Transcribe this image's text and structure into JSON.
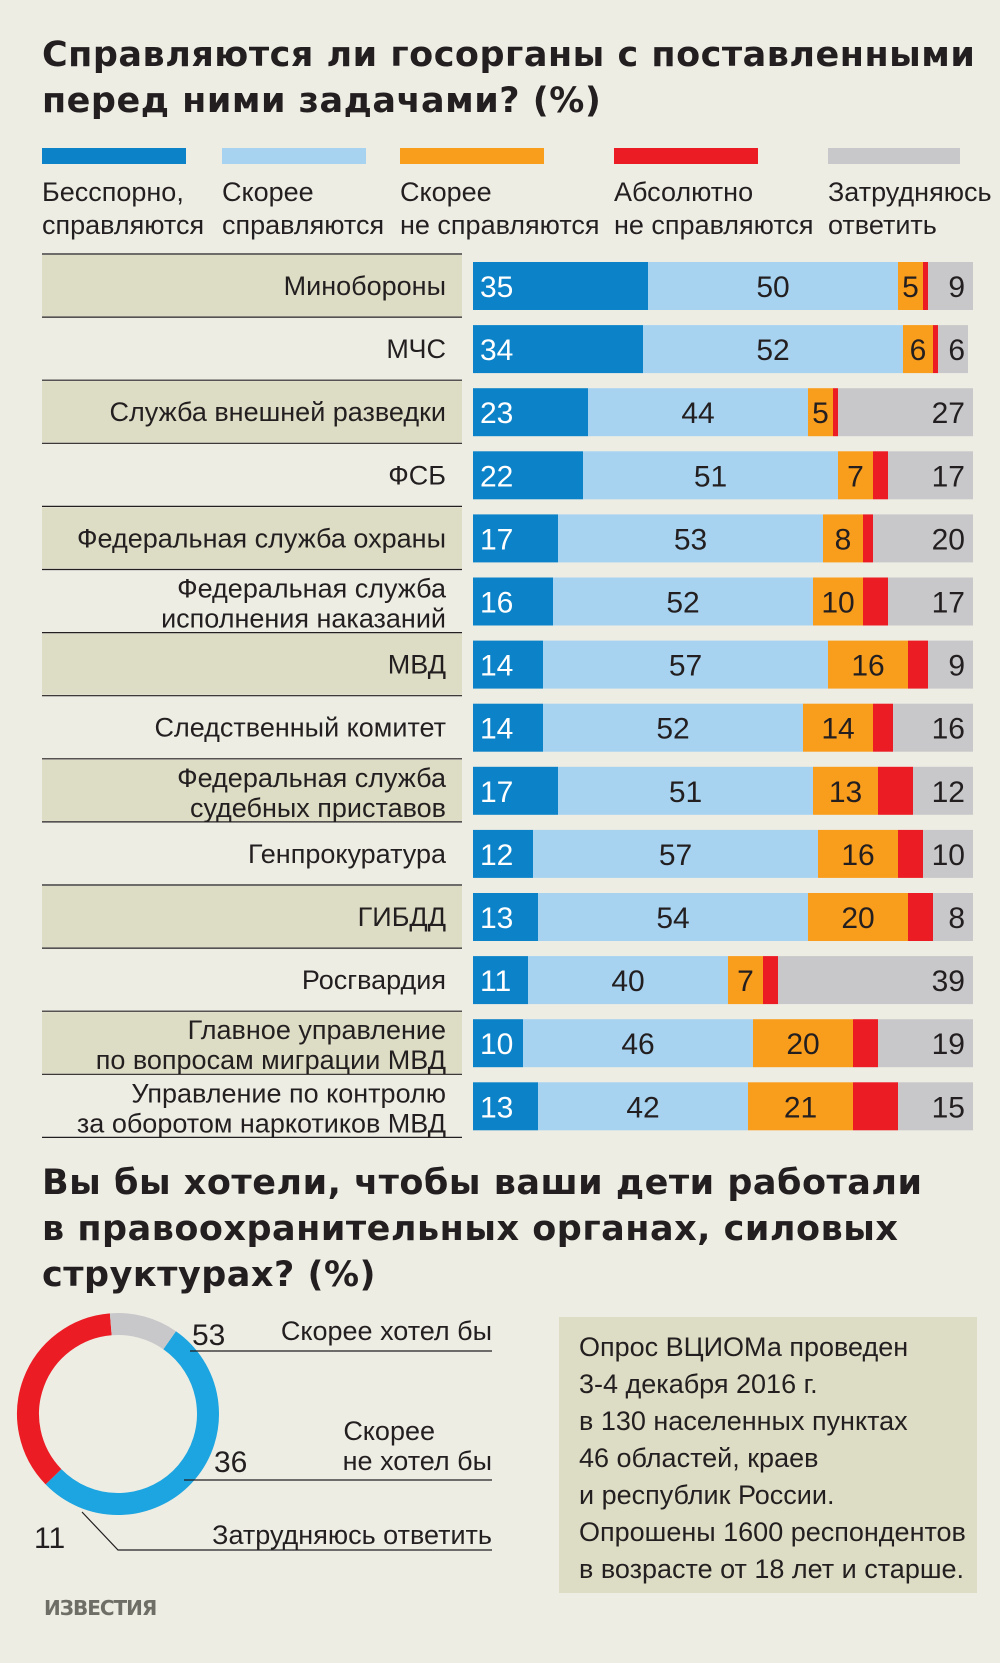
{
  "title1": "Справляются ли госорганы с поставленными перед ними задачами? (%)",
  "title2": "Вы бы хотели, чтобы ваши дети работали в правоохранительных органах, силовых структурах? (%)",
  "colors": {
    "strong_yes": "#0c83c9",
    "yes": "#a7d3f1",
    "no": "#f99d1c",
    "strong_no": "#ec1c24",
    "hard": "#c8c8ca",
    "band": "#dddcc4",
    "donut_yes": "#1ca5e0",
    "donut_no": "#ec1c24",
    "donut_hard": "#c8c8ca"
  },
  "legend": [
    {
      "label": "Бесспорно,\nсправляются",
      "color_key": "strong_yes"
    },
    {
      "label": "Скорее\nсправляются",
      "color_key": "yes"
    },
    {
      "label": "Скорее\nне справляются",
      "color_key": "no"
    },
    {
      "label": "Абсолютно\nне справляются",
      "color_key": "strong_no"
    },
    {
      "label": "Затрудняюсь\nответить",
      "color_key": "hard"
    }
  ],
  "chart_data": [
    {
      "type": "bar",
      "orientation": "horizontal",
      "stacked": true,
      "title": "Справляются ли госорганы с поставленными перед ними задачами? (%)",
      "categories": [
        "Минобороны",
        "МЧС",
        "Служба внешней разведки",
        "ФСБ",
        "Федеральная служба охраны",
        "Федеральная служба\nисполнения наказаний",
        "МВД",
        "Следственный комитет",
        "Федеральная служба\nсудебных приставов",
        "Генпрокуратура",
        "ГИБДД",
        "Росгвардия",
        "Главное управление\nпо вопросам миграции МВД",
        "Управление по контролю\nза оборотом наркотиков МВД"
      ],
      "series": [
        {
          "name": "Бесспорно, справляются",
          "color_key": "strong_yes",
          "labeled": true,
          "values": [
            35,
            34,
            23,
            22,
            17,
            16,
            14,
            14,
            17,
            12,
            13,
            11,
            10,
            13
          ]
        },
        {
          "name": "Скорее справляются",
          "color_key": "yes",
          "labeled": true,
          "values": [
            50,
            52,
            44,
            51,
            53,
            52,
            57,
            52,
            51,
            57,
            54,
            40,
            46,
            42
          ]
        },
        {
          "name": "Скорее не справляются",
          "color_key": "no",
          "labeled": true,
          "values": [
            5,
            6,
            5,
            7,
            8,
            10,
            16,
            14,
            13,
            16,
            20,
            7,
            20,
            21
          ]
        },
        {
          "name": "Абсолютно не справляются",
          "color_key": "strong_no",
          "labeled": false,
          "values": [
            1,
            1,
            1,
            3,
            2,
            5,
            4,
            4,
            7,
            5,
            5,
            3,
            5,
            9
          ]
        },
        {
          "name": "Затрудняюсь ответить",
          "color_key": "hard",
          "labeled": true,
          "values": [
            9,
            6,
            27,
            17,
            20,
            17,
            9,
            16,
            12,
            10,
            8,
            39,
            19,
            15
          ]
        }
      ],
      "xlim": [
        0,
        100
      ]
    },
    {
      "type": "pie",
      "donut": true,
      "title": "Вы бы хотели, чтобы ваши дети работали в правоохранительных органах, силовых структурах? (%)",
      "slices": [
        {
          "label": "Скорее хотел бы",
          "value": 53,
          "color_key": "donut_yes"
        },
        {
          "label": "Скорее\nне хотел бы",
          "value": 36,
          "color_key": "donut_no"
        },
        {
          "label": "Затрудняюсь ответить",
          "value": 11,
          "color_key": "donut_hard"
        }
      ]
    }
  ],
  "note": [
    "Опрос ВЦИОМа проведен",
    "3-4 декабря 2016 г.",
    "в 130 населенных пунктах",
    "46 областей, краев",
    "и республик России.",
    "Опрошены 1600 респондентов",
    "в возрасте от 18 лет и старше."
  ],
  "logo": "ИЗВЕСТИЯ"
}
